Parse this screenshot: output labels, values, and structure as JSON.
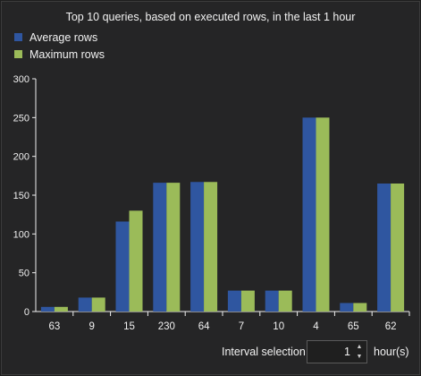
{
  "chart_data": {
    "type": "bar",
    "title": "Top 10 queries, based on executed rows, in the last 1 hour",
    "categories": [
      "63",
      "9",
      "15",
      "230",
      "64",
      "7",
      "10",
      "4",
      "65",
      "62"
    ],
    "series": [
      {
        "name": "Average rows",
        "values": [
          6,
          18,
          116,
          166,
          167,
          27,
          27,
          250,
          11,
          165
        ],
        "color": "#2f56a0"
      },
      {
        "name": "Maximum rows",
        "values": [
          6,
          18,
          130,
          166,
          167,
          27,
          27,
          250,
          11,
          165
        ],
        "color": "#9bbb59"
      }
    ],
    "xlabel": "",
    "ylabel": "",
    "ylim": [
      0,
      300
    ],
    "yticks": [
      "0",
      "50",
      "100",
      "150",
      "200",
      "250",
      "300"
    ],
    "grid": false,
    "legend_position": "top-left"
  },
  "interval": {
    "label": "Interval selection",
    "value": "1",
    "units": "hour(s)"
  },
  "colors": {
    "background": "#252526",
    "axis": "#f0f0f0"
  }
}
